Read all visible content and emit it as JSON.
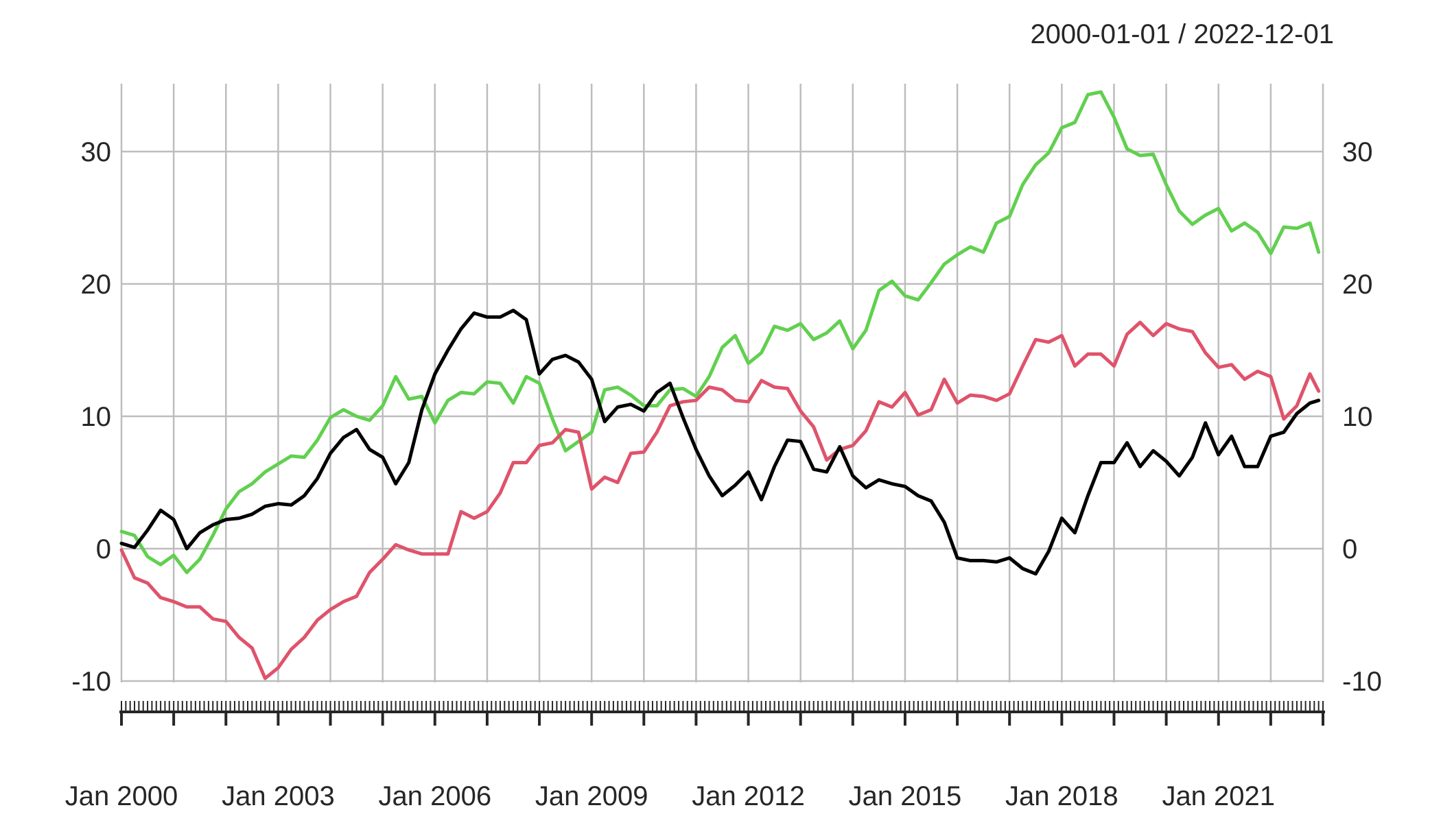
{
  "title": "2000-01-01 / 2022-12-01",
  "colors": {
    "background": "#ffffff",
    "grid": "#BDBDBD",
    "axis": "#262626",
    "text": "#262626",
    "series_black": "#000000",
    "series_red": "#DF536B",
    "series_green": "#61D04F"
  },
  "y_axis": {
    "ticks": [
      -10,
      0,
      10,
      20,
      30
    ],
    "shown_on": "both sides"
  },
  "x_axis": {
    "tick_labels": [
      {
        "label": "Jan 2000",
        "month": 0
      },
      {
        "label": "Jan 2003",
        "month": 36
      },
      {
        "label": "Jan 2006",
        "month": 72
      },
      {
        "label": "Jan 2009",
        "month": 108
      },
      {
        "label": "Jan 2012",
        "month": 144
      },
      {
        "label": "Jan 2015",
        "month": 180
      },
      {
        "label": "Jan 2018",
        "month": 216
      },
      {
        "label": "Jan 2021",
        "month": 252
      }
    ],
    "minor_tick_unit": "month",
    "major_tick_unit": "year"
  },
  "chart_data": {
    "type": "line",
    "title": "2000-01-01 / 2022-12-01",
    "x_unit": "months since 2000-01",
    "x_range": [
      "2000-01-01",
      "2022-12-01"
    ],
    "ylim": [
      -10.5,
      35.2
    ],
    "grid": true,
    "legend": "none",
    "x_months": [
      0,
      3,
      6,
      9,
      12,
      15,
      18,
      21,
      24,
      27,
      30,
      33,
      36,
      39,
      42,
      45,
      48,
      51,
      54,
      57,
      60,
      63,
      66,
      69,
      72,
      75,
      78,
      81,
      84,
      87,
      90,
      93,
      96,
      99,
      102,
      105,
      108,
      111,
      114,
      117,
      120,
      123,
      126,
      129,
      132,
      135,
      138,
      141,
      144,
      147,
      150,
      153,
      156,
      159,
      162,
      165,
      168,
      171,
      174,
      177,
      180,
      183,
      186,
      189,
      192,
      195,
      198,
      201,
      204,
      207,
      210,
      213,
      216,
      219,
      222,
      225,
      228,
      231,
      234,
      237,
      240,
      243,
      246,
      249,
      252,
      255,
      258,
      261,
      264,
      267,
      270,
      273,
      275
    ],
    "series": [
      {
        "name": "series-black",
        "color": "#000000",
        "values": [
          0.4,
          0.1,
          1.4,
          2.9,
          2.2,
          0.0,
          1.2,
          1.8,
          2.2,
          2.3,
          2.6,
          3.2,
          3.4,
          3.3,
          4.0,
          5.3,
          7.2,
          8.4,
          9.0,
          7.5,
          6.9,
          4.9,
          6.5,
          10.5,
          13.2,
          15.0,
          16.6,
          17.8,
          17.5,
          17.5,
          18.0,
          17.3,
          13.2,
          14.3,
          14.6,
          14.1,
          12.8,
          9.6,
          10.7,
          10.9,
          10.4,
          11.8,
          12.5,
          9.9,
          7.5,
          5.5,
          4.0,
          4.8,
          5.8,
          3.7,
          6.2,
          8.2,
          8.1,
          6.0,
          5.8,
          7.7,
          5.5,
          4.6,
          5.2,
          4.9,
          4.7,
          4.0,
          3.6,
          2.0,
          -0.7,
          -0.9,
          -0.9,
          -1.0,
          -0.7,
          -1.5,
          -1.9,
          -0.2,
          2.3,
          1.2,
          4.0,
          6.5,
          6.5,
          8.0,
          6.2,
          7.4,
          6.6,
          5.5,
          6.9,
          9.5,
          7.1,
          8.5,
          6.2,
          6.2,
          8.5,
          8.8,
          10.2,
          11.0,
          11.2
        ]
      },
      {
        "name": "series-red",
        "color": "#DF536B",
        "values": [
          -0.1,
          -2.2,
          -2.6,
          -3.7,
          -4.0,
          -4.4,
          -4.4,
          -5.3,
          -5.5,
          -6.7,
          -7.5,
          -9.8,
          -9.0,
          -7.6,
          -6.7,
          -5.4,
          -4.6,
          -4.0,
          -3.6,
          -1.8,
          -0.8,
          0.3,
          -0.1,
          -0.4,
          -0.4,
          -0.4,
          2.8,
          2.3,
          2.8,
          4.2,
          6.5,
          6.5,
          7.8,
          8.0,
          9.0,
          8.8,
          4.5,
          5.4,
          5.0,
          7.2,
          7.3,
          8.8,
          10.8,
          11.1,
          11.2,
          12.2,
          12.0,
          11.2,
          11.1,
          12.7,
          12.2,
          12.1,
          10.4,
          9.2,
          6.7,
          7.5,
          7.8,
          8.9,
          11.1,
          10.7,
          11.8,
          10.1,
          10.5,
          12.8,
          11.0,
          11.6,
          11.5,
          11.2,
          11.7,
          13.8,
          15.8,
          15.6,
          16.1,
          13.8,
          14.7,
          14.7,
          13.8,
          16.2,
          17.1,
          16.1,
          17.0,
          16.6,
          16.4,
          14.8,
          13.7,
          13.9,
          12.8,
          13.4,
          13.0,
          9.8,
          10.8,
          13.2,
          11.9
        ]
      },
      {
        "name": "series-green",
        "color": "#61D04F",
        "values": [
          1.3,
          1.0,
          -0.6,
          -1.2,
          -0.5,
          -1.8,
          -0.8,
          1.0,
          3.0,
          4.3,
          4.9,
          5.8,
          6.4,
          7.0,
          6.9,
          8.2,
          9.9,
          10.5,
          10.0,
          9.7,
          10.8,
          13.0,
          11.3,
          11.5,
          9.5,
          11.2,
          11.8,
          11.7,
          12.6,
          12.5,
          11.0,
          13.0,
          12.5,
          9.8,
          7.4,
          8.1,
          8.8,
          12.0,
          12.2,
          11.6,
          10.8,
          10.8,
          12.0,
          12.1,
          11.5,
          13.0,
          15.2,
          16.1,
          14.0,
          14.8,
          16.8,
          16.5,
          17.0,
          15.8,
          16.3,
          17.2,
          15.1,
          16.5,
          19.5,
          20.2,
          19.1,
          18.8,
          20.1,
          21.5,
          22.2,
          22.8,
          22.4,
          24.6,
          25.1,
          27.5,
          29.0,
          29.9,
          31.8,
          32.2,
          34.3,
          34.5,
          32.6,
          30.2,
          29.7,
          29.8,
          27.5,
          25.5,
          24.5,
          25.2,
          25.7,
          24.0,
          24.6,
          23.9,
          22.3,
          24.3,
          24.2,
          24.6,
          22.4
        ]
      }
    ]
  }
}
